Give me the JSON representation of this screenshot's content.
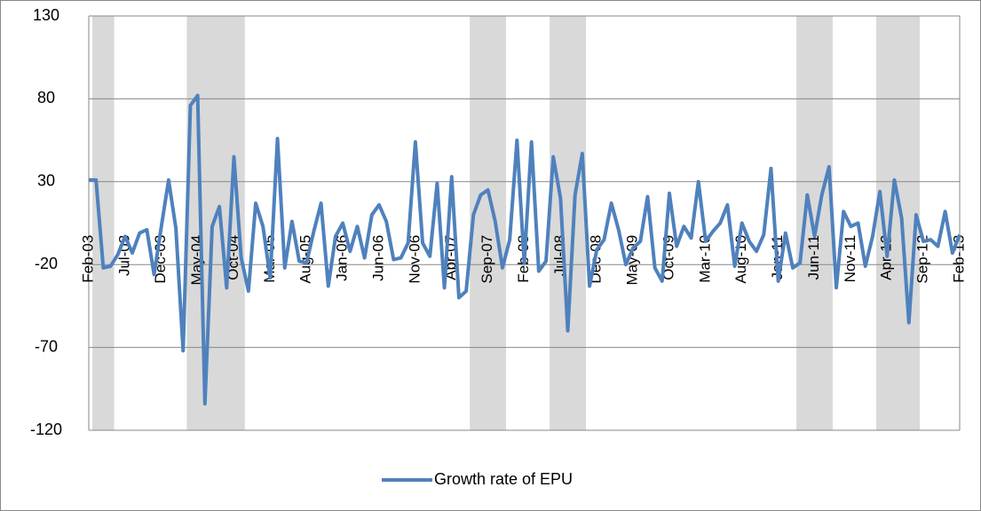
{
  "chart_data": {
    "type": "line",
    "categories": [
      "Feb-03",
      null,
      null,
      null,
      null,
      "Jul-03",
      null,
      null,
      null,
      null,
      "Dec-03",
      null,
      null,
      null,
      null,
      "May-04",
      null,
      null,
      null,
      null,
      "Oct-04",
      null,
      null,
      null,
      null,
      "Mar-05",
      null,
      null,
      null,
      null,
      "Aug-05",
      null,
      null,
      null,
      null,
      "Jan-06",
      null,
      null,
      null,
      null,
      "Jun-06",
      null,
      null,
      null,
      null,
      "Nov-06",
      null,
      null,
      null,
      null,
      "Apr-07",
      null,
      null,
      null,
      null,
      "Sep-07",
      null,
      null,
      null,
      null,
      "Feb-08",
      null,
      null,
      null,
      null,
      "Jul-08",
      null,
      null,
      null,
      null,
      "Dec-08",
      null,
      null,
      null,
      null,
      "May-09",
      null,
      null,
      null,
      null,
      "Oct-09",
      null,
      null,
      null,
      null,
      "Mar-10",
      null,
      null,
      null,
      null,
      "Aug-10",
      null,
      null,
      null,
      null,
      "Jan-11",
      null,
      null,
      null,
      null,
      "Jun-11",
      null,
      null,
      null,
      null,
      "Nov-11",
      null,
      null,
      null,
      null,
      "Apr-12",
      null,
      null,
      null,
      null,
      "Sep-12",
      null,
      null,
      null,
      null,
      "Feb-13"
    ],
    "series": [
      {
        "name": "Growth rate of EPU",
        "color": "#4f81bd",
        "values": [
          31,
          31,
          -22,
          -21,
          -14,
          -3,
          -13,
          -1,
          1,
          -26,
          3,
          31,
          2,
          -72,
          76,
          82,
          -104,
          3,
          15,
          -34,
          45,
          -16,
          -36,
          17,
          3,
          -28,
          56,
          -22,
          6,
          -18,
          -19,
          0,
          17,
          -33,
          -3,
          5,
          -12,
          3,
          -16,
          10,
          16,
          6,
          -17,
          -16,
          -7,
          54,
          -7,
          -15,
          29,
          -34,
          33,
          -40,
          -36,
          10,
          22,
          25,
          6,
          -22,
          -5,
          55,
          -19,
          54,
          -24,
          -18,
          45,
          20,
          -60,
          22,
          47,
          -33,
          -11,
          -5,
          17,
          1,
          -20,
          -10,
          -6,
          21,
          -22,
          -30,
          23,
          -9,
          3,
          -4,
          30,
          -6,
          0,
          5,
          16,
          -21,
          5,
          -6,
          -12,
          -2,
          38,
          -30,
          -1,
          -22,
          -19,
          22,
          -3,
          22,
          39,
          -34,
          12,
          3,
          5,
          -21,
          -3,
          24,
          -15,
          31,
          8,
          -55,
          10,
          -6,
          -5,
          -9,
          12,
          -13,
          -2
        ]
      }
    ],
    "shaded_periods": [
      [
        1,
        3
      ],
      [
        14,
        21
      ],
      [
        53,
        57
      ],
      [
        64,
        68
      ],
      [
        98,
        102
      ],
      [
        109,
        114
      ]
    ],
    "shade_color": "#d9d9d9",
    "ylim": [
      -120,
      130
    ],
    "yticks": [
      -120,
      -70,
      -20,
      30,
      80,
      130
    ],
    "grid": true,
    "legend": "bottom"
  }
}
